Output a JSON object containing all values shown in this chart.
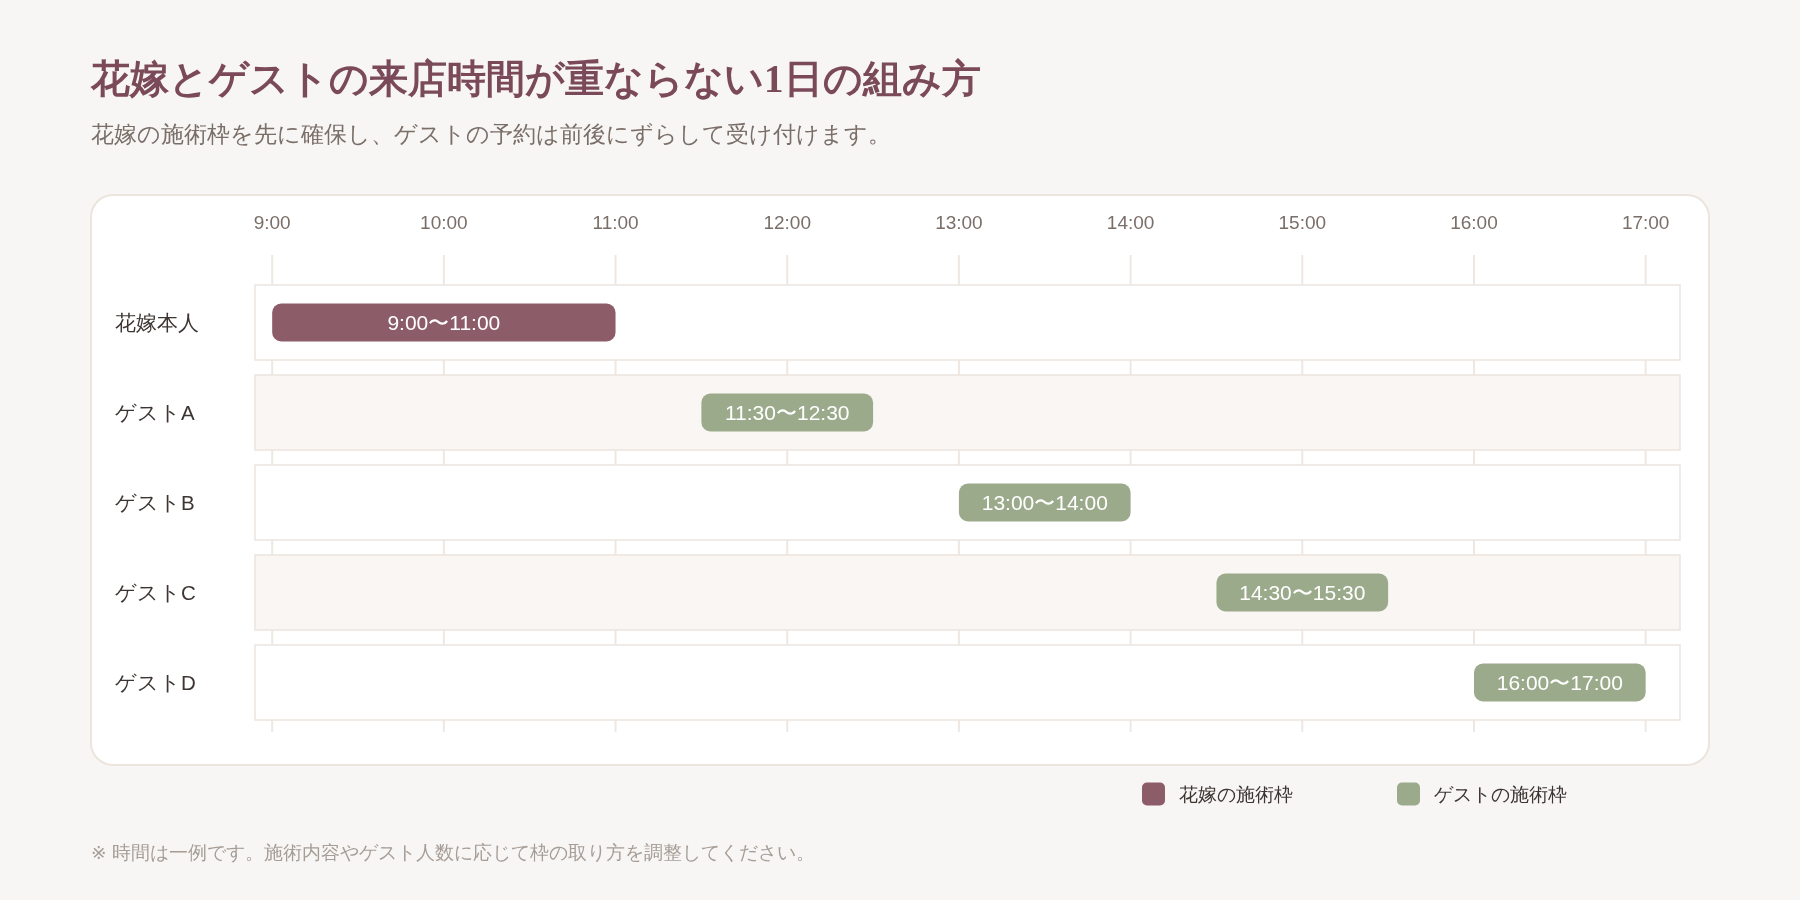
{
  "chart_data": {
    "type": "bar",
    "orientation": "horizontal",
    "title": "花嫁とゲストの来店時間が重ならない1日の組み方",
    "subtitle": "花嫁の施術枠を先に確保し、ゲストの予約は前後にずらして受け付けます。",
    "categories": [
      "花嫁本人",
      "ゲストA",
      "ゲストB",
      "ゲストC",
      "ゲストD"
    ],
    "series": [
      {
        "name": "花嫁の施術枠",
        "color": "#8d5c69",
        "base": [
          9,
          null,
          null,
          null,
          null
        ],
        "values": [
          2,
          null,
          null,
          null,
          null
        ],
        "value_labels": [
          "9:00〜11:00",
          null,
          null,
          null,
          null
        ]
      },
      {
        "name": "ゲストの施術枠",
        "color": "#9caa8c",
        "base": [
          null,
          11.5,
          13,
          14.5,
          16
        ],
        "values": [
          null,
          1,
          1,
          1,
          1
        ],
        "value_labels": [
          null,
          "11:30〜12:30",
          "13:00〜14:00",
          "14:30〜15:30",
          "16:00〜17:00"
        ]
      }
    ],
    "xlim": [
      8.9,
      17.2
    ],
    "xticks": [
      {
        "value": 9,
        "label": "9:00"
      },
      {
        "value": 10,
        "label": "10:00"
      },
      {
        "value": 11,
        "label": "11:00"
      },
      {
        "value": 12,
        "label": "12:00"
      },
      {
        "value": 13,
        "label": "13:00"
      },
      {
        "value": 14,
        "label": "14:00"
      },
      {
        "value": 15,
        "label": "15:00"
      },
      {
        "value": 16,
        "label": "16:00"
      },
      {
        "value": 17,
        "label": "17:00"
      }
    ],
    "bands": [
      {
        "axis": "y",
        "from": "花嫁本人",
        "to": "花嫁本人",
        "color": "#ffffff"
      },
      {
        "axis": "y",
        "from": "ゲストA",
        "to": "ゲストA",
        "color": "#faf6f3"
      },
      {
        "axis": "y",
        "from": "ゲストB",
        "to": "ゲストB",
        "color": "#ffffff"
      },
      {
        "axis": "y",
        "from": "ゲストC",
        "to": "ゲストC",
        "color": "#faf6f3"
      },
      {
        "axis": "y",
        "from": "ゲストD",
        "to": "ゲストD",
        "color": "#ffffff"
      }
    ],
    "grid": "x",
    "legend": "bottom right",
    "annotations": [
      "※ 時間は一例です。施術内容やゲスト人数に応じて枠の取り方を調整してください。"
    ]
  }
}
